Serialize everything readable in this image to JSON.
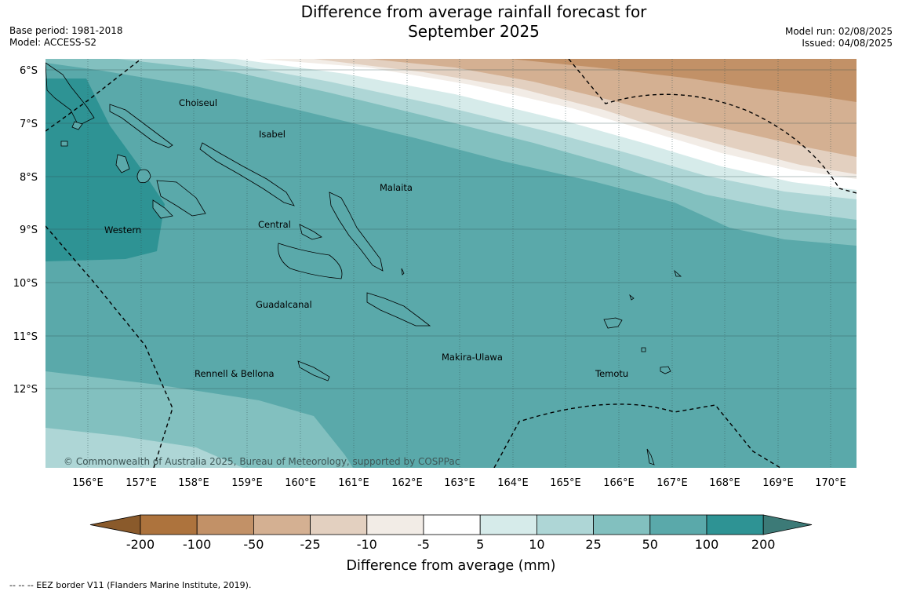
{
  "title_line1": "Difference from average rainfall forecast for",
  "title_line2": "September 2025",
  "meta_left": [
    "Base period: 1981-2018",
    "Model: ACCESS-S2"
  ],
  "meta_right": [
    "Model run: 02/08/2025",
    "Issued: 04/08/2025"
  ],
  "copyright": "© Commonwealth of Australia 2025, Bureau of Meteorology, supported by COSPPac",
  "eez_note": "--  --  -- EEZ border V11 (Flanders Marine Institute, 2019).",
  "map": {
    "lon_labels": [
      "156°E",
      "157°E",
      "158°E",
      "159°E",
      "160°E",
      "161°E",
      "162°E",
      "163°E",
      "164°E",
      "165°E",
      "166°E",
      "167°E",
      "168°E",
      "169°E",
      "170°E"
    ],
    "lat_labels": [
      "6°S",
      "7°S",
      "8°S",
      "9°S",
      "10°S",
      "11°S",
      "12°S"
    ],
    "provinces": [
      "Choiseul",
      "Isabel",
      "Malaita",
      "Western",
      "Central",
      "Guadalcanal",
      "Makira-Ulawa",
      "Rennell & Bellona",
      "Temotu"
    ]
  },
  "legend": {
    "title": "Difference from average (mm)",
    "ticks": [
      "-200",
      "-100",
      "-50",
      "-25",
      "-10",
      "-5",
      "5",
      "10",
      "25",
      "50",
      "100",
      "200"
    ],
    "colors": [
      "#8a5a2b",
      "#ad733d",
      "#c29167",
      "#d4b092",
      "#e3d0c0",
      "#f2ece6",
      "#ffffff",
      "#d6ebea",
      "#aed6d6",
      "#82c0bf",
      "#5aa9aa",
      "#2e9394",
      "#3c7a77"
    ]
  }
}
